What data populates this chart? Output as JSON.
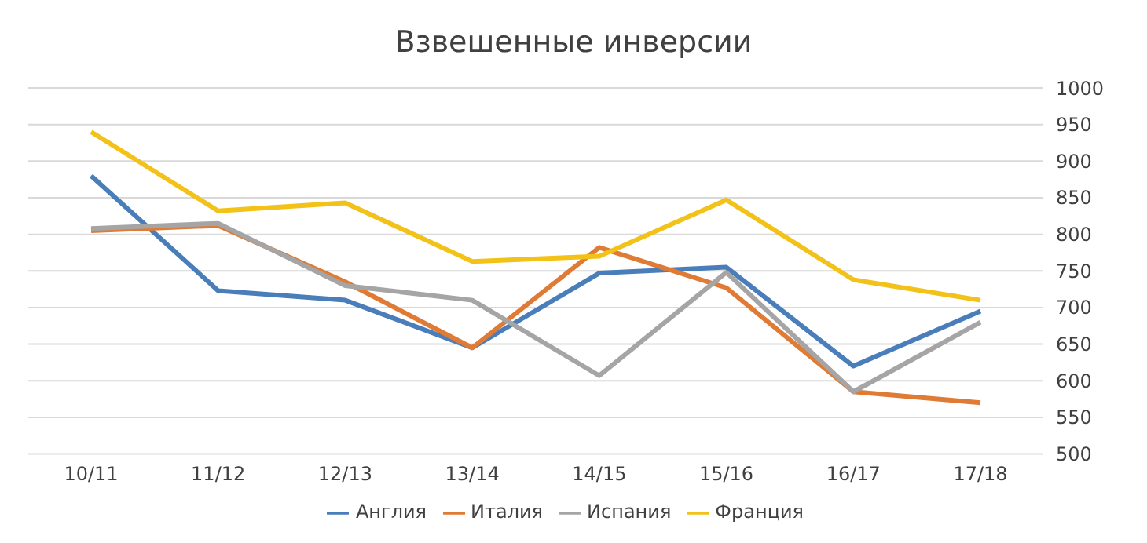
{
  "chart_data": {
    "type": "line",
    "title": "Взвешенные инверсии",
    "categories": [
      "10/11",
      "11/12",
      "12/13",
      "13/14",
      "14/15",
      "15/16",
      "16/17",
      "17/18"
    ],
    "series": [
      {
        "name": "Англия",
        "color": "#4a7ebb",
        "values": [
          880,
          723,
          710,
          645,
          747,
          755,
          620,
          695
        ]
      },
      {
        "name": "Италия",
        "color": "#e07b35",
        "values": [
          805,
          812,
          735,
          645,
          782,
          727,
          585,
          570
        ]
      },
      {
        "name": "Испания",
        "color": "#a5a5a5",
        "values": [
          808,
          815,
          730,
          710,
          607,
          748,
          585,
          680
        ]
      },
      {
        "name": "Франция",
        "color": "#f2c218",
        "values": [
          940,
          832,
          843,
          763,
          770,
          847,
          738,
          710
        ]
      }
    ],
    "ylim": [
      500,
      1000
    ],
    "yticks": [
      500,
      550,
      600,
      650,
      700,
      750,
      800,
      850,
      900,
      950,
      1000
    ],
    "grid": "y",
    "legend": "bottom",
    "marker": "none",
    "line_style": "solid"
  }
}
